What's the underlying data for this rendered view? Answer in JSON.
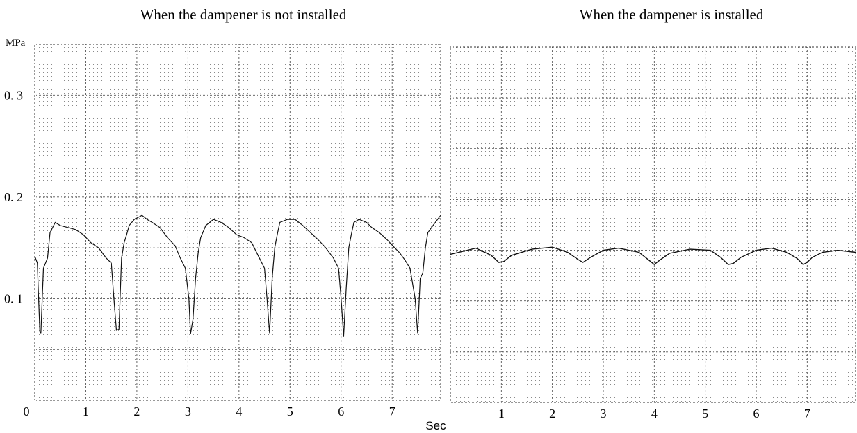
{
  "chart_data": [
    {
      "type": "line",
      "title": "When the dampener is not installed",
      "ylabel": "MPa",
      "xlabel": "Sec",
      "xlim": [
        0,
        7.95
      ],
      "ylim": [
        0,
        0.35
      ],
      "x_ticks": [
        0,
        1,
        2,
        3,
        4,
        5,
        6,
        7
      ],
      "x_tick_labels": [
        "0",
        "1",
        "2",
        "3",
        "4",
        "5",
        "6",
        "7"
      ],
      "y_ticks": [
        0.1,
        0.2,
        0.3
      ],
      "y_tick_labels": [
        "0. 1",
        "0. 2",
        "0. 3"
      ],
      "grid": true,
      "series": [
        {
          "x": [
            0,
            0.05,
            0.1,
            0.12,
            0.17,
            0.25,
            0.3,
            0.4,
            0.5,
            0.65,
            0.8,
            0.95,
            1.1,
            1.25,
            1.4,
            1.5,
            1.55,
            1.6,
            1.65,
            1.7,
            1.75,
            1.8,
            1.85,
            1.95,
            2.1,
            2.2,
            2.3,
            2.45,
            2.6,
            2.75,
            2.85,
            2.95,
            3.02,
            3.05,
            3.1,
            3.15,
            3.2,
            3.25,
            3.35,
            3.5,
            3.65,
            3.8,
            3.95,
            4.1,
            4.25,
            4.4,
            4.5,
            4.55,
            4.6,
            4.65,
            4.7,
            4.75,
            4.8,
            4.95,
            5.1,
            5.25,
            5.4,
            5.55,
            5.7,
            5.85,
            5.95,
            6.0,
            6.05,
            6.1,
            6.15,
            6.2,
            6.25,
            6.35,
            6.5,
            6.6,
            6.75,
            6.9,
            7.05,
            7.15,
            7.25,
            7.35,
            7.45,
            7.5,
            7.55,
            7.6,
            7.65,
            7.7,
            7.8,
            7.95
          ],
          "y": [
            0.142,
            0.135,
            0.068,
            0.066,
            0.13,
            0.14,
            0.165,
            0.175,
            0.172,
            0.17,
            0.168,
            0.163,
            0.155,
            0.15,
            0.14,
            0.135,
            0.1,
            0.069,
            0.07,
            0.14,
            0.155,
            0.163,
            0.172,
            0.178,
            0.182,
            0.178,
            0.175,
            0.17,
            0.16,
            0.152,
            0.14,
            0.13,
            0.1,
            0.065,
            0.08,
            0.12,
            0.145,
            0.16,
            0.172,
            0.178,
            0.175,
            0.17,
            0.163,
            0.16,
            0.155,
            0.14,
            0.13,
            0.1,
            0.066,
            0.12,
            0.15,
            0.163,
            0.175,
            0.178,
            0.178,
            0.172,
            0.165,
            0.158,
            0.15,
            0.14,
            0.13,
            0.1,
            0.063,
            0.11,
            0.15,
            0.163,
            0.175,
            0.178,
            0.175,
            0.17,
            0.165,
            0.158,
            0.15,
            0.145,
            0.138,
            0.13,
            0.1,
            0.066,
            0.12,
            0.125,
            0.15,
            0.165,
            0.172,
            0.182
          ]
        }
      ]
    },
    {
      "type": "line",
      "title": "When the dampener is installed",
      "xlabel": "Sec",
      "xlim": [
        0,
        7.95
      ],
      "ylim": [
        0,
        0.35
      ],
      "x_ticks": [
        1,
        2,
        3,
        4,
        5,
        6,
        7
      ],
      "x_tick_labels": [
        "1",
        "2",
        "3",
        "4",
        "5",
        "6",
        "7"
      ],
      "grid": true,
      "series": [
        {
          "x": [
            0,
            0.5,
            0.8,
            0.95,
            1.05,
            1.2,
            1.6,
            2.0,
            2.3,
            2.5,
            2.6,
            2.75,
            3.0,
            3.3,
            3.7,
            3.9,
            4.0,
            4.1,
            4.3,
            4.7,
            5.1,
            5.3,
            5.45,
            5.55,
            5.7,
            6.0,
            6.3,
            6.6,
            6.8,
            6.92,
            7.0,
            7.1,
            7.3,
            7.6,
            7.95
          ],
          "y": [
            0.146,
            0.152,
            0.145,
            0.138,
            0.139,
            0.145,
            0.151,
            0.153,
            0.148,
            0.141,
            0.138,
            0.143,
            0.15,
            0.152,
            0.148,
            0.14,
            0.136,
            0.14,
            0.147,
            0.151,
            0.15,
            0.143,
            0.136,
            0.137,
            0.143,
            0.15,
            0.152,
            0.148,
            0.142,
            0.136,
            0.138,
            0.143,
            0.148,
            0.15,
            0.148
          ]
        }
      ]
    }
  ]
}
